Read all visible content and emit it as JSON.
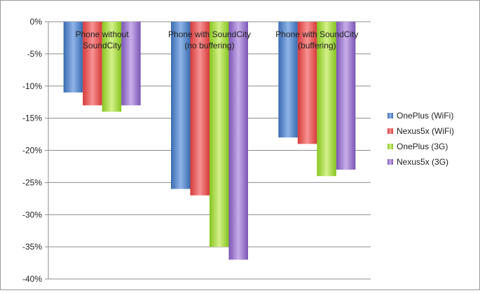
{
  "chart_data": {
    "type": "bar",
    "categories": [
      [
        "Phone without",
        "SoundCity"
      ],
      [
        "Phone with SoundCity",
        "(no buffering)"
      ],
      [
        "Phone with SoundCity",
        "(buffering)"
      ]
    ],
    "series": [
      {
        "name": "OnePlus (WiFi)",
        "color": "#4f81bd",
        "values": [
          -11,
          -26,
          -18
        ]
      },
      {
        "name": "Nexus5x (WiFi)",
        "color": "#c0504d",
        "values": [
          -13,
          -27,
          -19
        ]
      },
      {
        "name": "OnePlus (3G)",
        "color": "#9bbb59",
        "values": [
          -14,
          -35,
          -24
        ]
      },
      {
        "name": "Nexus5x (3G)",
        "color": "#8064a2",
        "values": [
          -13,
          -37,
          -23
        ]
      }
    ],
    "ylim": [
      -40,
      0
    ],
    "yticks": [
      0,
      -5,
      -10,
      -15,
      -20,
      -25,
      -30,
      -35,
      -40
    ],
    "ytick_labels": [
      "0%",
      "-5%",
      "-10%",
      "-15%",
      "-20%",
      "-25%",
      "-30%",
      "-35%",
      "-40%"
    ],
    "grid": true,
    "legend": "right",
    "title": "",
    "xlabel": "",
    "ylabel": ""
  }
}
